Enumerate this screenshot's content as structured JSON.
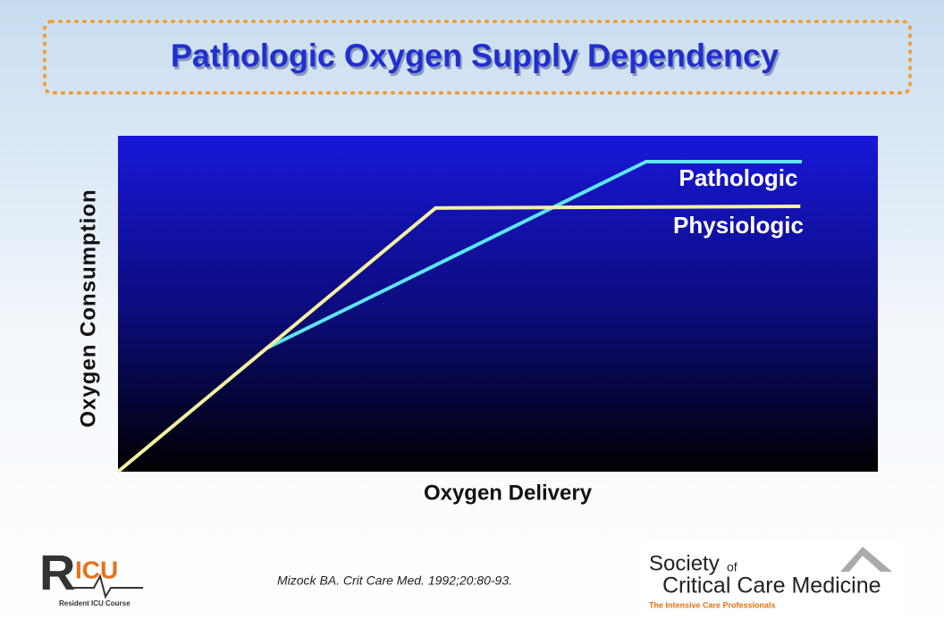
{
  "chart_data": {
    "type": "line",
    "title": "Pathologic Oxygen Supply Dependency",
    "x_label": "Oxygen Delivery",
    "y_label": "Oxygen Consumption",
    "xlim": [
      0,
      100
    ],
    "ylim": [
      0,
      100
    ],
    "series": [
      {
        "name": "Pathologic",
        "color": "#5ce6f0",
        "x": [
          19.5,
          69.5,
          90
        ],
        "values": [
          36.7,
          92.3,
          92.3
        ]
      },
      {
        "name": "Physiologic",
        "color": "#f4f0a0",
        "x": [
          0,
          41.8,
          89.8
        ],
        "values": [
          0,
          78.5,
          79
        ]
      }
    ]
  },
  "citation": "Mizock BA. Crit Care Med. 1992;20:80-93.",
  "logos": {
    "ricu_r": "R",
    "ricu_icu": "ICU",
    "ricu_course": "Resident ICU Course",
    "sccm_society": "Society",
    "sccm_of": "of",
    "sccm_name": "Critical Care Medicine",
    "sccm_tagline": "The Intensive Care Professionals"
  }
}
